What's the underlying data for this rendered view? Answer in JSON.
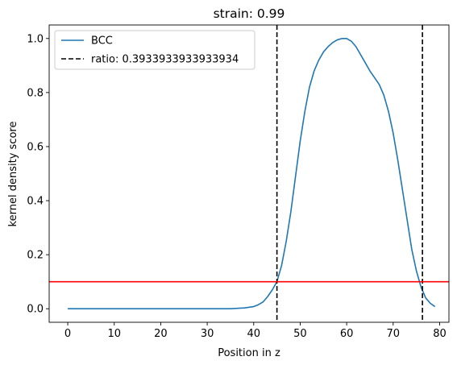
{
  "chart_data": {
    "type": "line",
    "title": "strain: 0.99",
    "xlabel": "Position in z",
    "ylabel": "kernel density score",
    "xlim": [
      -4,
      82
    ],
    "ylim": [
      -0.05,
      1.05
    ],
    "xticks": [
      0,
      10,
      20,
      30,
      40,
      50,
      60,
      70,
      80
    ],
    "yticks": [
      0.0,
      0.2,
      0.4,
      0.6,
      0.8,
      1.0
    ],
    "xtick_labels": [
      "0",
      "10",
      "20",
      "30",
      "40",
      "50",
      "60",
      "70",
      "80"
    ],
    "ytick_labels": [
      "0.0",
      "0.2",
      "0.4",
      "0.6",
      "0.8",
      "1.0"
    ],
    "grid": false,
    "legend_position": "top-left",
    "series": [
      {
        "name": "BCC",
        "color": "#1f77b4",
        "style": "solid",
        "x": [
          0,
          5,
          10,
          15,
          20,
          25,
          30,
          35,
          38,
          40,
          41,
          42,
          43,
          44,
          45,
          46,
          47,
          48,
          49,
          50,
          51,
          52,
          53,
          54,
          55,
          56,
          57,
          58,
          59,
          60,
          61,
          62,
          63,
          64,
          65,
          66,
          67,
          68,
          69,
          70,
          71,
          72,
          73,
          74,
          75,
          76,
          77,
          78,
          79
        ],
        "y": [
          0.0,
          0.0,
          0.0,
          0.0,
          0.0,
          0.0,
          0.0,
          0.0,
          0.003,
          0.008,
          0.015,
          0.025,
          0.045,
          0.07,
          0.1,
          0.16,
          0.25,
          0.36,
          0.49,
          0.62,
          0.73,
          0.82,
          0.88,
          0.92,
          0.95,
          0.97,
          0.985,
          0.995,
          1.0,
          1.0,
          0.99,
          0.97,
          0.94,
          0.91,
          0.88,
          0.855,
          0.83,
          0.79,
          0.73,
          0.65,
          0.55,
          0.44,
          0.33,
          0.22,
          0.14,
          0.08,
          0.04,
          0.02,
          0.008
        ]
      },
      {
        "name": "ratio: 0.3933933933933934",
        "color": "#000000",
        "style": "dashed",
        "vlines": [
          45,
          76.3
        ]
      }
    ],
    "hline": {
      "y": 0.1,
      "color": "#ff0000"
    }
  }
}
